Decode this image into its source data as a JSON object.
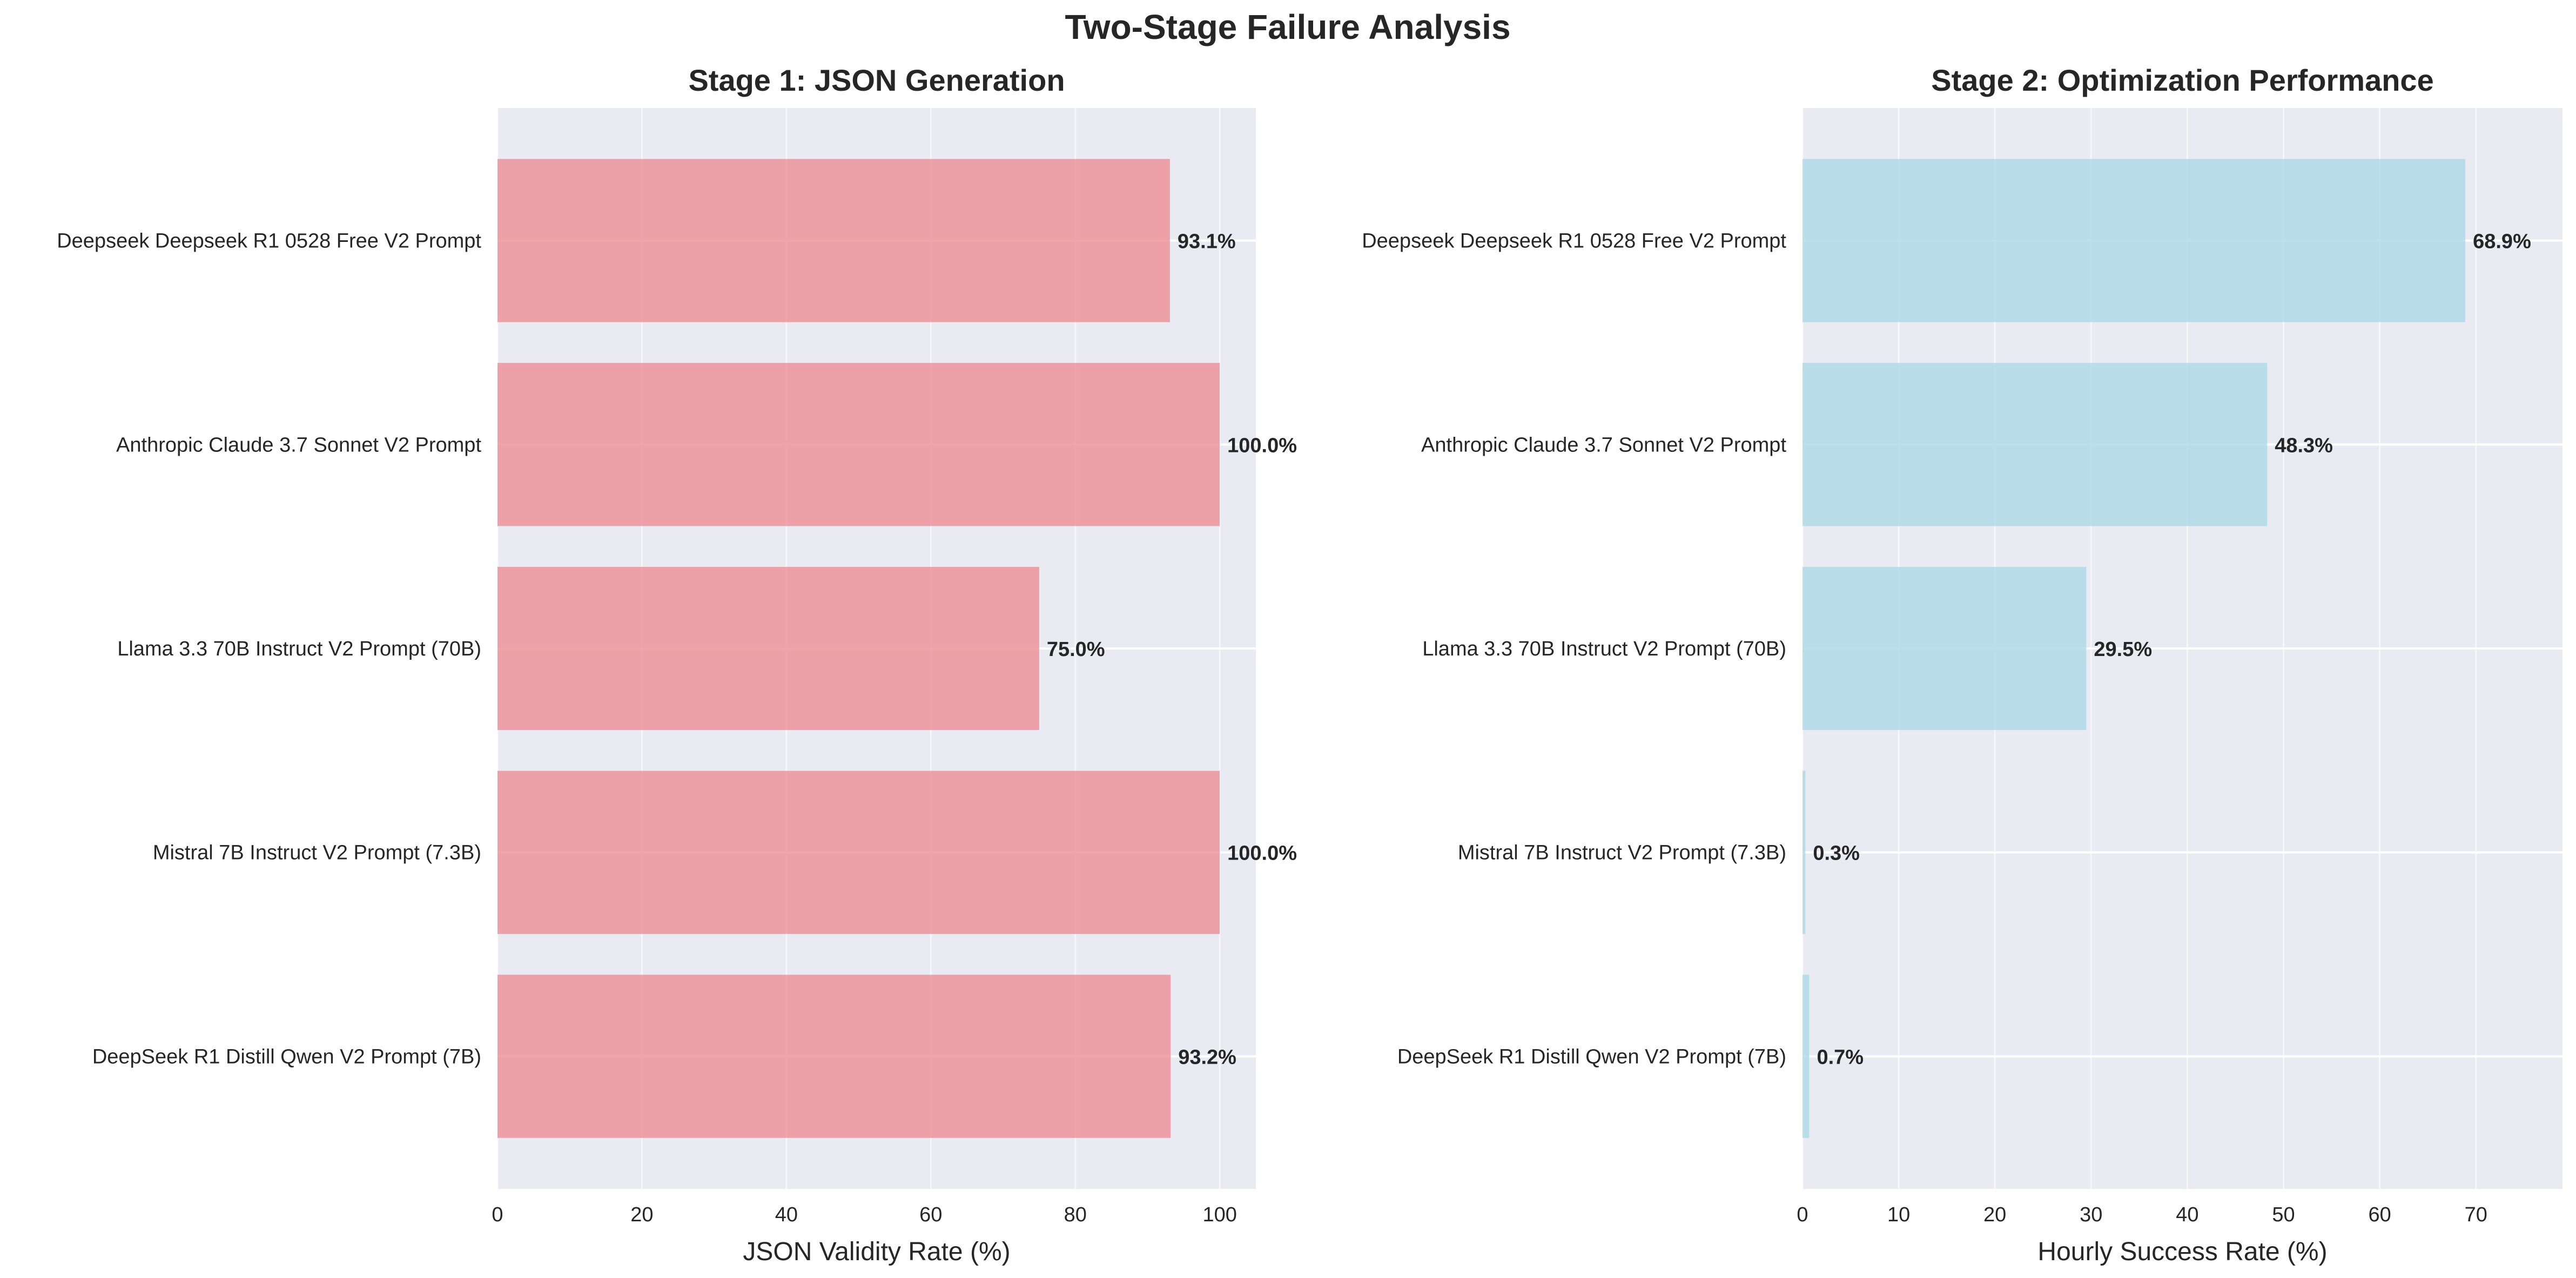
{
  "figure": {
    "title": "Two-Stage Failure Analysis"
  },
  "chart_data": [
    {
      "type": "bar",
      "orientation": "horizontal",
      "title": "Stage 1: JSON Generation",
      "xlabel": "JSON Validity Rate (%)",
      "ylabel": "",
      "categories": [
        "Deepseek Deepseek R1 0528 Free V2 Prompt",
        "Anthropic Claude 3.7 Sonnet V2 Prompt",
        "Llama 3.3 70B Instruct V2 Prompt (70B)",
        "Mistral 7B Instruct V2 Prompt (7.3B)",
        "DeepSeek R1 Distill Qwen V2 Prompt (7B)"
      ],
      "values": [
        93.1,
        100.0,
        75.0,
        100.0,
        93.2
      ],
      "data_labels": [
        "93.1%",
        "100.0%",
        "75.0%",
        "100.0%",
        "93.2%"
      ],
      "xlim": [
        0,
        105
      ],
      "xticks": [
        0,
        20,
        40,
        60,
        80,
        100
      ],
      "xtick_labels": [
        "0",
        "20",
        "40",
        "60",
        "80",
        "100"
      ],
      "grid": true,
      "color": "#eb8f93"
    },
    {
      "type": "bar",
      "orientation": "horizontal",
      "title": "Stage 2: Optimization Performance",
      "xlabel": "Hourly Success Rate (%)",
      "ylabel": "",
      "categories": [
        "Deepseek Deepseek R1 0528 Free V2 Prompt",
        "Anthropic Claude 3.7 Sonnet V2 Prompt",
        "Llama 3.3 70B Instruct V2 Prompt (70B)",
        "Mistral 7B Instruct V2 Prompt (7.3B)",
        "DeepSeek R1 Distill Qwen V2 Prompt (7B)"
      ],
      "values": [
        68.9,
        48.3,
        29.5,
        0.3,
        0.7
      ],
      "data_labels": [
        "68.9%",
        "48.3%",
        "29.5%",
        "0.3%",
        "0.7%"
      ],
      "xlim": [
        0,
        79
      ],
      "xticks": [
        0,
        10,
        20,
        30,
        40,
        50,
        60,
        70
      ],
      "xtick_labels": [
        "0",
        "10",
        "20",
        "30",
        "40",
        "50",
        "60",
        "70"
      ],
      "grid": true,
      "color": "#add8e6"
    }
  ],
  "colors": {
    "plot_background": "#eaeaf2",
    "grid": "#ffffff",
    "text": "#262626"
  }
}
